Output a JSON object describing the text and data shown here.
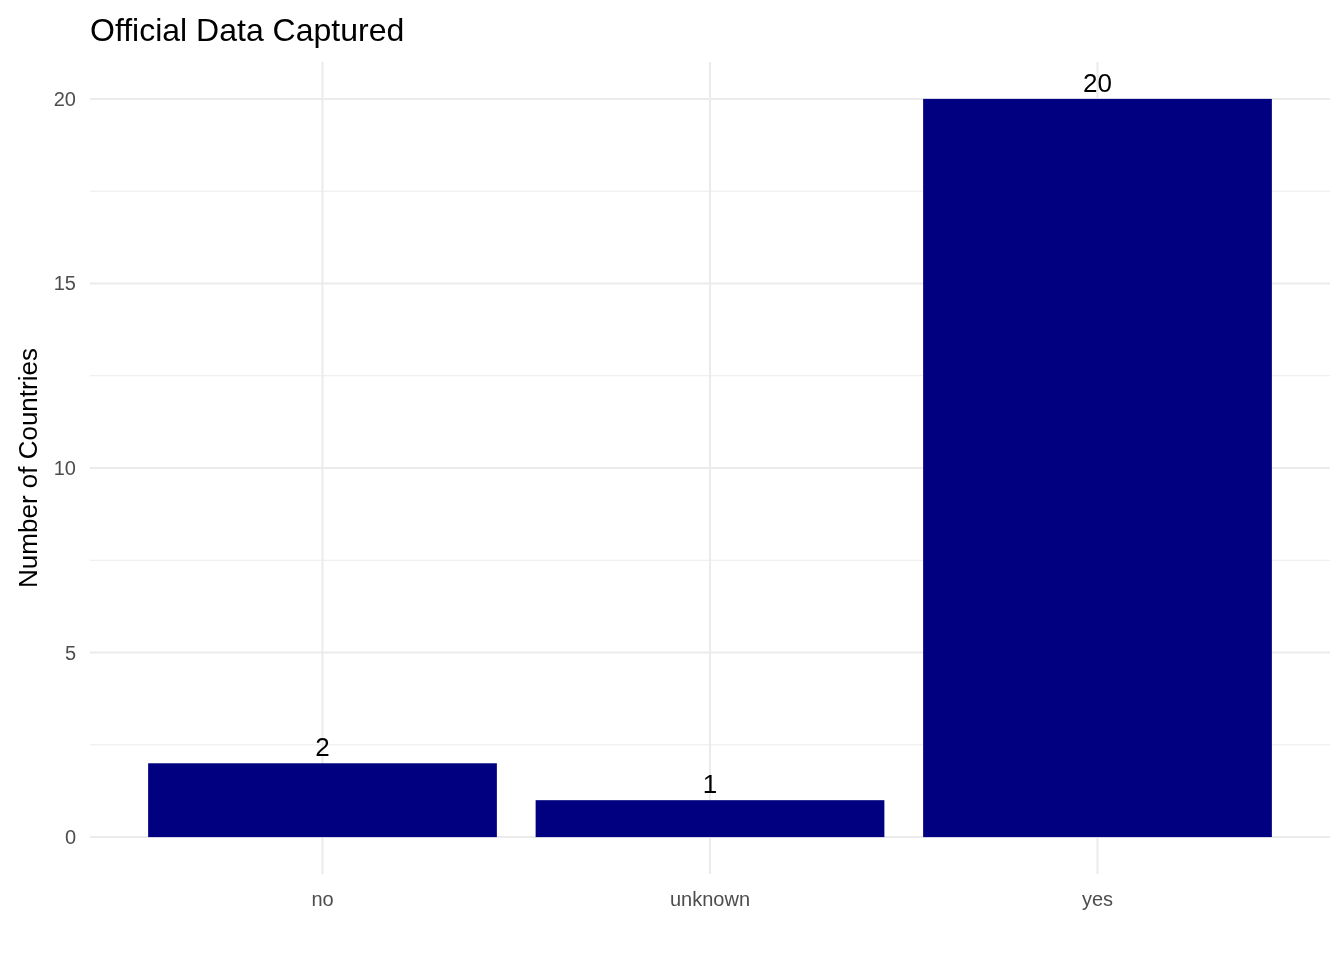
{
  "chart_data": {
    "type": "bar",
    "title": "Official Data Captured",
    "ylabel": "Number of Countries",
    "categories": [
      "no",
      "unknown",
      "yes"
    ],
    "values": [
      2,
      1,
      20
    ],
    "color": "#000080",
    "ylim": [
      -1,
      21
    ],
    "yticks": [
      0,
      5,
      10,
      15,
      20
    ],
    "grid": true,
    "data_labels": true
  }
}
